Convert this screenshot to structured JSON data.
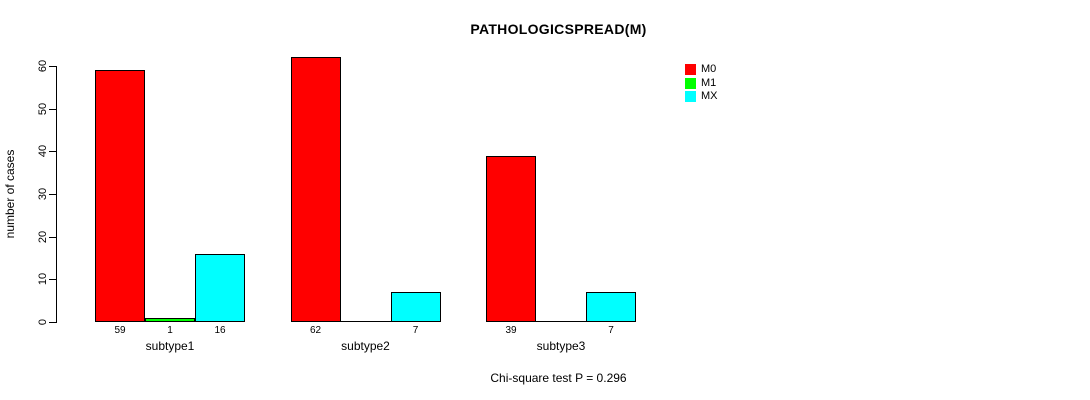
{
  "chart_data": {
    "type": "bar",
    "title": "PATHOLOGICSPREAD(M)",
    "ylabel": "number of cases",
    "xlabel": "",
    "ylim": [
      0,
      60
    ],
    "yticks": [
      0,
      10,
      20,
      30,
      40,
      50,
      60
    ],
    "grid": false,
    "legend_position": "top-right",
    "background": "#ffffff",
    "bar_border_color": "#000000",
    "categories": [
      "subtype1",
      "subtype2",
      "subtype3"
    ],
    "series": [
      {
        "name": "M0",
        "color": "#ff0000",
        "values": [
          59,
          62,
          39
        ]
      },
      {
        "name": "M1",
        "color": "#00ff00",
        "values": [
          1,
          0,
          0
        ]
      },
      {
        "name": "MX",
        "color": "#00ffff",
        "values": [
          16,
          7,
          7
        ]
      }
    ],
    "bar_value_labels": [
      [
        "59",
        "1",
        "16"
      ],
      [
        "62",
        "",
        "7"
      ],
      [
        "39",
        "",
        "7"
      ]
    ],
    "annotation": "Chi-square test P = 0.296"
  }
}
